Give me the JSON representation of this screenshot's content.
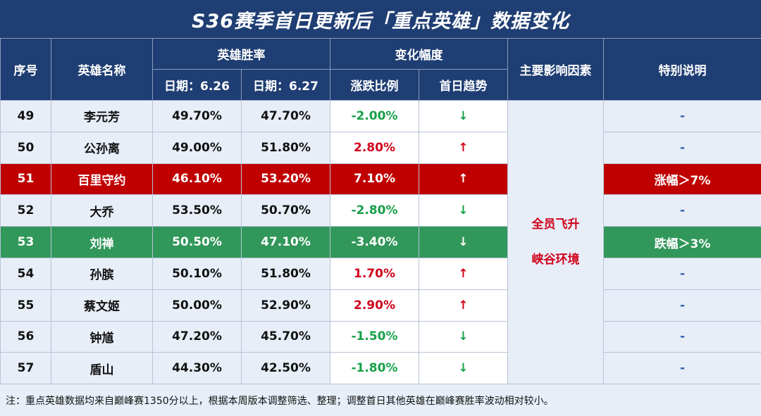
{
  "title": "S36赛季首日更新后「重点英雄」数据变化",
  "headers": {
    "index": "序号",
    "hero_name": "英雄名称",
    "win_rate": "英雄胜率",
    "date1": "日期：6.26",
    "date2": "日期：6.27",
    "change": "变化幅度",
    "change_ratio": "涨跌比例",
    "trend": "首日趋势",
    "factor": "主要影响因素",
    "note": "特别说明"
  },
  "factor_lines": [
    "全员飞升",
    "峡谷环境"
  ],
  "rows": [
    {
      "no": "49",
      "name": "李元芳",
      "d1": "49.70%",
      "d2": "47.70%",
      "ratio": "-2.00%",
      "trend": "↓",
      "dir": "down",
      "note": "-",
      "hl": ""
    },
    {
      "no": "50",
      "name": "公孙离",
      "d1": "49.00%",
      "d2": "51.80%",
      "ratio": "2.80%",
      "trend": "↑",
      "dir": "up",
      "note": "-",
      "hl": ""
    },
    {
      "no": "51",
      "name": "百里守约",
      "d1": "46.10%",
      "d2": "53.20%",
      "ratio": "7.10%",
      "trend": "↑",
      "dir": "up",
      "note": "涨幅＞7%",
      "hl": "red"
    },
    {
      "no": "52",
      "name": "大乔",
      "d1": "53.50%",
      "d2": "50.70%",
      "ratio": "-2.80%",
      "trend": "↓",
      "dir": "down",
      "note": "-",
      "hl": ""
    },
    {
      "no": "53",
      "name": "刘禅",
      "d1": "50.50%",
      "d2": "47.10%",
      "ratio": "-3.40%",
      "trend": "↓",
      "dir": "down",
      "note": "跌幅＞3%",
      "hl": "green"
    },
    {
      "no": "54",
      "name": "孙膑",
      "d1": "50.10%",
      "d2": "51.80%",
      "ratio": "1.70%",
      "trend": "↑",
      "dir": "up",
      "note": "-",
      "hl": ""
    },
    {
      "no": "55",
      "name": "蔡文姬",
      "d1": "50.00%",
      "d2": "52.90%",
      "ratio": "2.90%",
      "trend": "↑",
      "dir": "up",
      "note": "-",
      "hl": ""
    },
    {
      "no": "56",
      "name": "钟馗",
      "d1": "47.20%",
      "d2": "45.70%",
      "ratio": "-1.50%",
      "trend": "↓",
      "dir": "down",
      "note": "-",
      "hl": ""
    },
    {
      "no": "57",
      "name": "盾山",
      "d1": "44.30%",
      "d2": "42.50%",
      "ratio": "-1.80%",
      "trend": "↓",
      "dir": "down",
      "note": "-",
      "hl": ""
    }
  ],
  "footer": "注：重点英雄数据均来自巅峰赛1350分以上，根据本周版本调整筛选、整理；调整首日其他英雄在巅峰赛胜率波动相对较小。"
}
